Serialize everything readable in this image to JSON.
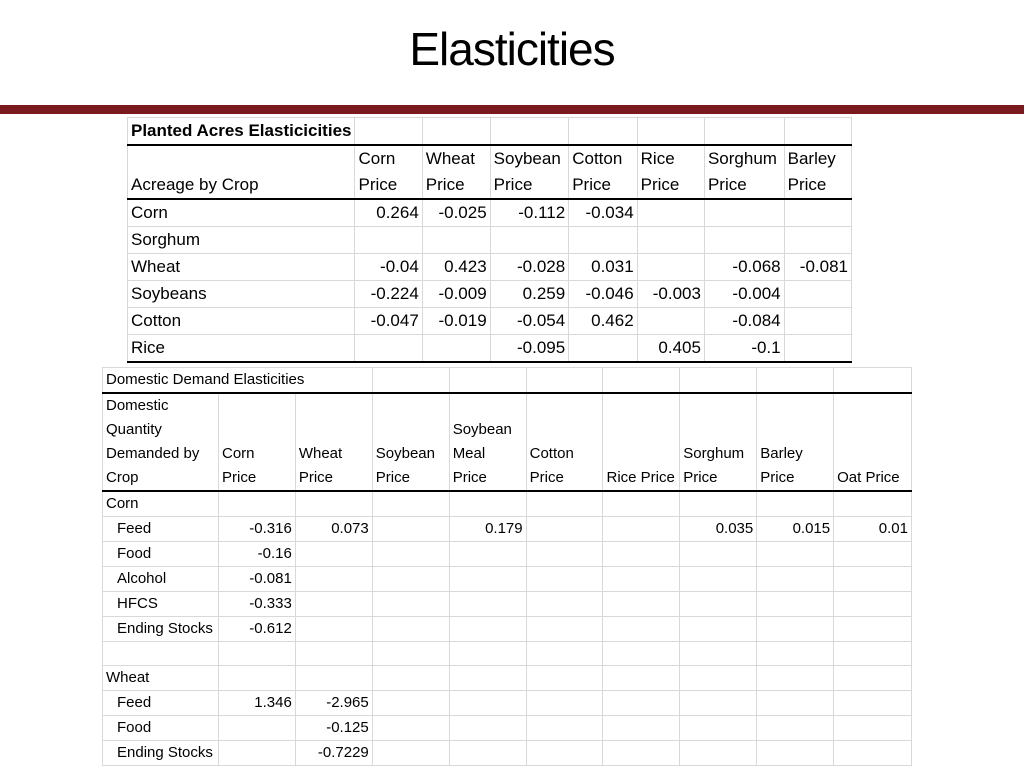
{
  "title": "Elasticities",
  "colors": {
    "rule": "#7a1a1f",
    "gridline": "#d9d9d9"
  },
  "planted": {
    "caption": "Planted Acres Elasticicities",
    "headers": [
      "Acreage by Crop",
      "Corn Price",
      "Wheat Price",
      "Soybean Price",
      "Cotton Price",
      "Rice Price",
      "Sorghum Price",
      "Barley Price"
    ],
    "rows": [
      [
        "Corn",
        "0.264",
        "-0.025",
        "-0.112",
        "-0.034",
        "",
        "",
        ""
      ],
      [
        "Sorghum",
        "",
        "",
        "",
        "",
        "",
        "",
        ""
      ],
      [
        "Wheat",
        "-0.04",
        "0.423",
        "-0.028",
        "0.031",
        "",
        "-0.068",
        "-0.081"
      ],
      [
        "Soybeans",
        "-0.224",
        "-0.009",
        "0.259",
        "-0.046",
        "-0.003",
        "-0.004",
        ""
      ],
      [
        "Cotton",
        "-0.047",
        "-0.019",
        "-0.054",
        "0.462",
        "",
        "-0.084",
        ""
      ],
      [
        "Rice",
        "",
        "",
        "-0.095",
        "",
        "0.405",
        "-0.1",
        ""
      ]
    ]
  },
  "domestic": {
    "caption": "Domestic Demand Elasticities",
    "headers": [
      "Domestic Quantity Demanded by Crop",
      "Corn Price",
      "Wheat Price",
      "Soybean Price",
      "Soybean Meal Price",
      "Cotton Price",
      "Rice Price",
      "Sorghum Price",
      "Barley Price",
      "Oat Price"
    ],
    "rows": [
      [
        "Corn",
        "",
        "",
        "",
        "",
        "",
        "",
        "",
        "",
        ""
      ],
      [
        "Feed",
        "-0.316",
        "0.073",
        "",
        "0.179",
        "",
        "",
        "0.035",
        "0.015",
        "0.01"
      ],
      [
        "Food",
        "-0.16",
        "",
        "",
        "",
        "",
        "",
        "",
        "",
        ""
      ],
      [
        "Alcohol",
        "-0.081",
        "",
        "",
        "",
        "",
        "",
        "",
        "",
        ""
      ],
      [
        "HFCS",
        "-0.333",
        "",
        "",
        "",
        "",
        "",
        "",
        "",
        ""
      ],
      [
        "Ending Stocks",
        "-0.612",
        "",
        "",
        "",
        "",
        "",
        "",
        "",
        ""
      ],
      [
        "",
        "",
        "",
        "",
        "",
        "",
        "",
        "",
        "",
        ""
      ],
      [
        "Wheat",
        "",
        "",
        "",
        "",
        "",
        "",
        "",
        "",
        ""
      ],
      [
        "Feed",
        "1.346",
        "-2.965",
        "",
        "",
        "",
        "",
        "",
        "",
        ""
      ],
      [
        "Food",
        "",
        "-0.125",
        "",
        "",
        "",
        "",
        "",
        "",
        ""
      ],
      [
        "Ending Stocks",
        "",
        "-0.7229",
        "",
        "",
        "",
        "",
        "",
        "",
        ""
      ]
    ]
  }
}
